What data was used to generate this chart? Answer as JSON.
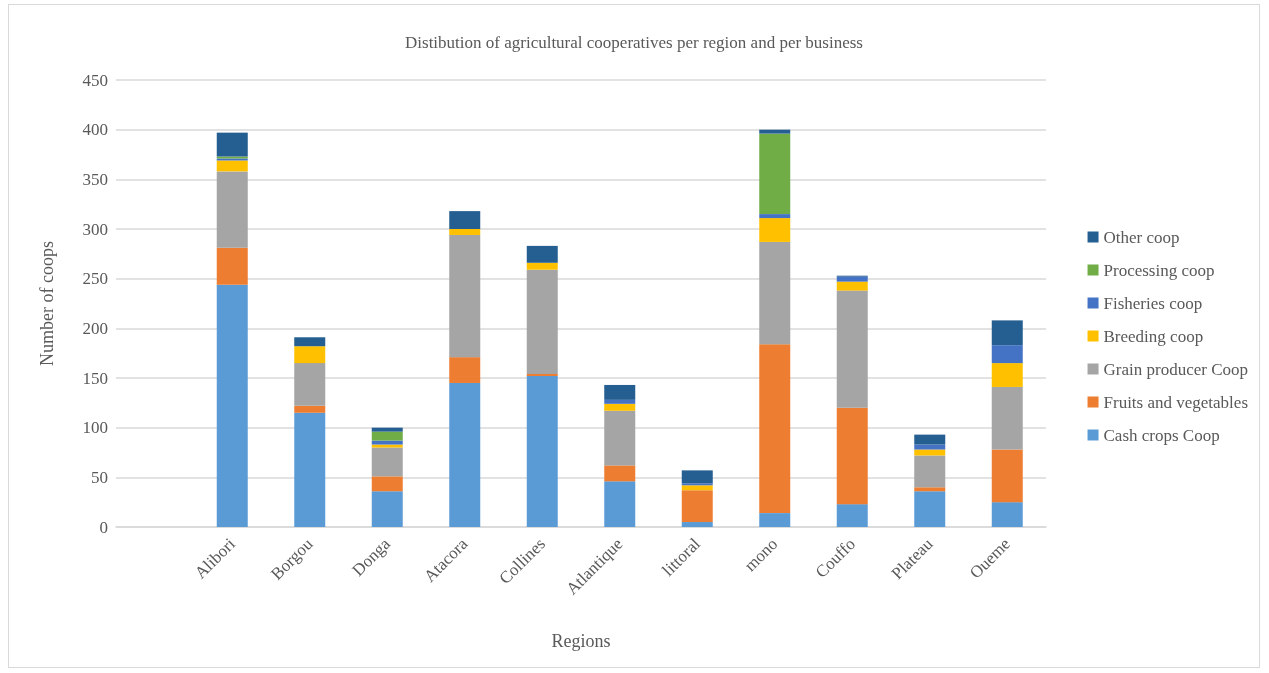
{
  "chart_data": {
    "type": "bar",
    "title": "Distibution of agricultural cooperatives per region and per business",
    "xlabel": "Regions",
    "ylabel": "Number of coops",
    "categories": [
      null,
      "Alibori",
      "Borgou",
      "Donga",
      "Atacora",
      "Collines",
      "Atlantique",
      "littoral",
      "mono",
      "Couffo",
      "Plateau",
      "Oueme"
    ],
    "stacked": true,
    "ylim": [
      0,
      450
    ],
    "yticks": [
      0,
      50,
      100,
      150,
      200,
      250,
      300,
      350,
      400,
      450
    ],
    "grid": "y",
    "legend": "right",
    "series": [
      {
        "name": "Cash crops Coop",
        "color": "#5b9bd5",
        "values": [
          null,
          244,
          115,
          36,
          145,
          152,
          46,
          5,
          14,
          23,
          36,
          25
        ]
      },
      {
        "name": "Fruits and vegetables",
        "color": "#ed7d31",
        "values": [
          null,
          37,
          7,
          15,
          26,
          2,
          16,
          32,
          170,
          97,
          4,
          53
        ]
      },
      {
        "name": "Grain producer Coop",
        "color": "#a5a5a5",
        "values": [
          null,
          77,
          43,
          29,
          123,
          105,
          55,
          0,
          103,
          118,
          32,
          63
        ]
      },
      {
        "name": "Breeding coop",
        "color": "#ffc000",
        "values": [
          null,
          11,
          17,
          3,
          6,
          7,
          7,
          5,
          24,
          9,
          6,
          24
        ]
      },
      {
        "name": "Fisheries coop",
        "color": "#4472c4",
        "values": [
          null,
          2,
          0,
          4,
          0,
          0,
          4,
          2,
          4,
          5,
          5,
          18
        ]
      },
      {
        "name": "Processing coop",
        "color": "#70ad47",
        "values": [
          null,
          2,
          0,
          9,
          0,
          0,
          0,
          0,
          81,
          0,
          0,
          0
        ]
      },
      {
        "name": "Other coop",
        "color": "#255e91",
        "values": [
          null,
          24,
          9,
          4,
          18,
          17,
          15,
          13,
          4,
          1,
          10,
          25
        ]
      }
    ]
  }
}
